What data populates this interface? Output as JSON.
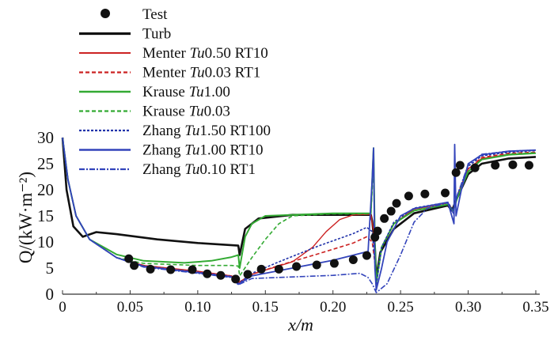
{
  "chart_data": {
    "type": "line",
    "xlabel": "x/m",
    "ylabel": "Q/(kW·m⁻²)",
    "xlim": [
      0,
      0.35
    ],
    "ylim": [
      0,
      30
    ],
    "xticks": [
      "0",
      "0.05",
      "0.10",
      "0.15",
      "0.20",
      "0.25",
      "0.30",
      "0.35"
    ],
    "xtick_values": [
      0,
      0.05,
      0.1,
      0.15,
      0.2,
      0.25,
      0.3,
      0.35
    ],
    "yticks": [
      "0",
      "5",
      "10",
      "15",
      "20",
      "25",
      "30"
    ],
    "ytick_values": [
      0,
      5,
      10,
      15,
      20,
      25,
      30
    ],
    "grid": false,
    "legend_placement": "top-center",
    "test": {
      "name": "Test",
      "x": [
        0.049,
        0.053,
        0.065,
        0.08,
        0.096,
        0.107,
        0.117,
        0.128,
        0.137,
        0.147,
        0.16,
        0.173,
        0.188,
        0.201,
        0.215,
        0.225,
        0.231,
        0.233,
        0.238,
        0.243,
        0.247,
        0.256,
        0.268,
        0.283,
        0.291,
        0.294,
        0.305,
        0.32,
        0.333,
        0.345
      ],
      "y": [
        6.8,
        5.5,
        4.8,
        4.7,
        4.7,
        3.9,
        3.6,
        2.9,
        3.8,
        4.8,
        4.8,
        5.3,
        5.6,
        5.9,
        6.6,
        7.4,
        10.9,
        12.1,
        14.5,
        15.9,
        17.4,
        18.8,
        19.2,
        19.4,
        23.3,
        24.7,
        24.2,
        24.7,
        24.8,
        24.7
      ]
    },
    "series": [
      {
        "name": "Turb",
        "prefix": "Turb",
        "tu": "",
        "suffix": "",
        "color": "#111111",
        "dash": "",
        "width": 2.6,
        "points": [
          [
            0,
            30
          ],
          [
            0.003,
            20
          ],
          [
            0.008,
            13
          ],
          [
            0.015,
            11
          ],
          [
            0.025,
            11.9
          ],
          [
            0.04,
            11.5
          ],
          [
            0.07,
            10.5
          ],
          [
            0.1,
            9.8
          ],
          [
            0.13,
            9.3
          ],
          [
            0.131,
            7.5
          ],
          [
            0.135,
            12.5
          ],
          [
            0.145,
            14.5
          ],
          [
            0.17,
            15.2
          ],
          [
            0.228,
            15.2
          ],
          [
            0.229,
            14
          ],
          [
            0.231,
            9
          ],
          [
            0.232,
            3
          ],
          [
            0.235,
            8
          ],
          [
            0.245,
            12.5
          ],
          [
            0.26,
            15.5
          ],
          [
            0.285,
            17
          ],
          [
            0.288,
            16
          ],
          [
            0.291,
            18
          ],
          [
            0.3,
            23
          ],
          [
            0.31,
            25
          ],
          [
            0.33,
            26
          ],
          [
            0.35,
            26.3
          ]
        ]
      },
      {
        "name": "Menter Tu0.50 RT10",
        "prefix": "Menter ",
        "tu": "Tu",
        "suffix": "0.50 RT10",
        "color": "#cc2222",
        "dash": "",
        "width": 1.4,
        "points": [
          [
            0,
            30
          ],
          [
            0.004,
            22
          ],
          [
            0.01,
            15
          ],
          [
            0.02,
            10.5
          ],
          [
            0.04,
            7
          ],
          [
            0.06,
            5.5
          ],
          [
            0.1,
            4.4
          ],
          [
            0.125,
            3.5
          ],
          [
            0.13,
            2.2
          ],
          [
            0.14,
            3.8
          ],
          [
            0.15,
            4.6
          ],
          [
            0.17,
            6.2
          ],
          [
            0.185,
            9
          ],
          [
            0.195,
            12
          ],
          [
            0.205,
            14.3
          ],
          [
            0.215,
            15.2
          ],
          [
            0.228,
            15.3
          ],
          [
            0.23,
            12
          ],
          [
            0.232,
            2
          ],
          [
            0.236,
            9
          ],
          [
            0.245,
            13.5
          ],
          [
            0.26,
            16.3
          ],
          [
            0.285,
            17.5
          ],
          [
            0.289,
            16
          ],
          [
            0.292,
            19
          ],
          [
            0.3,
            24
          ],
          [
            0.31,
            26
          ],
          [
            0.33,
            26.8
          ],
          [
            0.35,
            27
          ]
        ]
      },
      {
        "name": "Menter Tu0.03 RT1",
        "prefix": "Menter ",
        "tu": "Tu",
        "suffix": "0.03 RT1",
        "color": "#cc2222",
        "dash": "5,3",
        "width": 1.6,
        "points": [
          [
            0,
            30
          ],
          [
            0.004,
            22
          ],
          [
            0.01,
            15
          ],
          [
            0.02,
            10.5
          ],
          [
            0.04,
            7
          ],
          [
            0.06,
            5.5
          ],
          [
            0.1,
            4.3
          ],
          [
            0.125,
            3.5
          ],
          [
            0.13,
            2.2
          ],
          [
            0.14,
            3.8
          ],
          [
            0.16,
            5.5
          ],
          [
            0.19,
            7.8
          ],
          [
            0.215,
            9.8
          ],
          [
            0.225,
            11
          ],
          [
            0.229,
            10
          ],
          [
            0.231,
            6
          ],
          [
            0.232,
            2
          ],
          [
            0.236,
            9
          ],
          [
            0.245,
            13.5
          ],
          [
            0.26,
            16.3
          ],
          [
            0.285,
            17.5
          ],
          [
            0.289,
            16
          ],
          [
            0.292,
            19
          ],
          [
            0.3,
            24
          ],
          [
            0.31,
            26.2
          ],
          [
            0.33,
            27
          ],
          [
            0.35,
            27.2
          ]
        ]
      },
      {
        "name": "Krause Tu1.00",
        "prefix": "Krause ",
        "tu": "Tu",
        "suffix": "1.00",
        "color": "#33aa33",
        "dash": "",
        "width": 2,
        "points": [
          [
            0,
            30
          ],
          [
            0.004,
            22
          ],
          [
            0.01,
            15
          ],
          [
            0.02,
            10.5
          ],
          [
            0.04,
            7.6
          ],
          [
            0.06,
            6.4
          ],
          [
            0.09,
            6.0
          ],
          [
            0.11,
            6.4
          ],
          [
            0.125,
            7.1
          ],
          [
            0.13,
            7.5
          ],
          [
            0.131,
            5
          ],
          [
            0.135,
            11
          ],
          [
            0.14,
            13.5
          ],
          [
            0.15,
            15
          ],
          [
            0.2,
            15.5
          ],
          [
            0.228,
            15.5
          ],
          [
            0.229,
            22
          ],
          [
            0.23,
            28
          ],
          [
            0.231,
            10
          ],
          [
            0.232,
            2
          ],
          [
            0.236,
            9
          ],
          [
            0.245,
            13.5
          ],
          [
            0.26,
            16
          ],
          [
            0.285,
            17.2
          ],
          [
            0.289,
            16
          ],
          [
            0.292,
            18.5
          ],
          [
            0.3,
            23.5
          ],
          [
            0.31,
            25.8
          ],
          [
            0.33,
            26.7
          ],
          [
            0.35,
            27
          ]
        ]
      },
      {
        "name": "Krause Tu0.03",
        "prefix": "Krause ",
        "tu": "Tu",
        "suffix": "0.03",
        "color": "#33aa33",
        "dash": "5,3",
        "width": 1.6,
        "points": [
          [
            0,
            30
          ],
          [
            0.004,
            22
          ],
          [
            0.01,
            15
          ],
          [
            0.02,
            10.5
          ],
          [
            0.04,
            7
          ],
          [
            0.06,
            5.9
          ],
          [
            0.1,
            5.5
          ],
          [
            0.125,
            5.5
          ],
          [
            0.13,
            5.4
          ],
          [
            0.131,
            3.5
          ],
          [
            0.14,
            7
          ],
          [
            0.15,
            10.5
          ],
          [
            0.16,
            13.5
          ],
          [
            0.17,
            15
          ],
          [
            0.2,
            15.4
          ],
          [
            0.228,
            15.4
          ],
          [
            0.229,
            20
          ],
          [
            0.23,
            27
          ],
          [
            0.231,
            10
          ],
          [
            0.232,
            2
          ],
          [
            0.236,
            9
          ],
          [
            0.245,
            13.5
          ],
          [
            0.26,
            16
          ],
          [
            0.285,
            17.2
          ],
          [
            0.289,
            16
          ],
          [
            0.292,
            18.5
          ],
          [
            0.3,
            23.5
          ],
          [
            0.31,
            25.8
          ],
          [
            0.33,
            26.8
          ],
          [
            0.35,
            27.1
          ]
        ]
      },
      {
        "name": "Zhang Tu1.50 RT100",
        "prefix": "Zhang ",
        "tu": "Tu",
        "suffix": "1.50 RT100",
        "color": "#2233aa",
        "dash": "3,2",
        "width": 1.6,
        "points": [
          [
            0,
            30
          ],
          [
            0.004,
            22
          ],
          [
            0.01,
            15
          ],
          [
            0.02,
            10.5
          ],
          [
            0.04,
            7
          ],
          [
            0.06,
            5.4
          ],
          [
            0.1,
            4.2
          ],
          [
            0.125,
            3.4
          ],
          [
            0.13,
            2
          ],
          [
            0.14,
            4
          ],
          [
            0.16,
            6.2
          ],
          [
            0.19,
            9.3
          ],
          [
            0.215,
            11.6
          ],
          [
            0.225,
            12.8
          ],
          [
            0.229,
            12
          ],
          [
            0.231,
            6
          ],
          [
            0.232,
            1.5
          ],
          [
            0.236,
            9
          ],
          [
            0.245,
            13.8
          ],
          [
            0.26,
            16.5
          ],
          [
            0.285,
            17.6
          ],
          [
            0.289,
            16
          ],
          [
            0.292,
            19
          ],
          [
            0.3,
            24.5
          ],
          [
            0.31,
            26.5
          ],
          [
            0.33,
            27.2
          ],
          [
            0.35,
            27.5
          ]
        ]
      },
      {
        "name": "Zhang Tu1.00 RT10",
        "prefix": "Zhang ",
        "tu": "Tu",
        "suffix": "1.00 RT10",
        "color": "#3344bb",
        "dash": "",
        "width": 1.8,
        "points": [
          [
            0,
            30
          ],
          [
            0.004,
            22
          ],
          [
            0.01,
            15
          ],
          [
            0.02,
            10.5
          ],
          [
            0.04,
            7
          ],
          [
            0.06,
            5.3
          ],
          [
            0.1,
            4.1
          ],
          [
            0.125,
            3.3
          ],
          [
            0.13,
            1.9
          ],
          [
            0.14,
            3.5
          ],
          [
            0.17,
            5.0
          ],
          [
            0.2,
            6.5
          ],
          [
            0.22,
            7.8
          ],
          [
            0.226,
            8.2
          ],
          [
            0.229,
            22
          ],
          [
            0.23,
            28
          ],
          [
            0.231,
            5
          ],
          [
            0.232,
            0.8
          ],
          [
            0.236,
            5
          ],
          [
            0.24,
            10
          ],
          [
            0.25,
            15
          ],
          [
            0.26,
            16.4
          ],
          [
            0.285,
            17.6
          ],
          [
            0.2895,
            13.5
          ],
          [
            0.29,
            28.7
          ],
          [
            0.291,
            15
          ],
          [
            0.295,
            20
          ],
          [
            0.3,
            25
          ],
          [
            0.31,
            26.7
          ],
          [
            0.33,
            27.4
          ],
          [
            0.35,
            27.6
          ]
        ]
      },
      {
        "name": "Zhang Tu0.10 RT1",
        "prefix": "Zhang ",
        "tu": "Tu",
        "suffix": "0.10 RT1",
        "color": "#3344bb",
        "dash": "7,2,2,2",
        "width": 1.6,
        "points": [
          [
            0,
            30
          ],
          [
            0.004,
            22
          ],
          [
            0.01,
            15
          ],
          [
            0.02,
            10.5
          ],
          [
            0.04,
            7
          ],
          [
            0.06,
            5.2
          ],
          [
            0.1,
            4.0
          ],
          [
            0.125,
            3.2
          ],
          [
            0.13,
            1.8
          ],
          [
            0.14,
            3.0
          ],
          [
            0.17,
            3.3
          ],
          [
            0.2,
            3.6
          ],
          [
            0.22,
            4.0
          ],
          [
            0.226,
            3.2
          ],
          [
            0.229,
            2
          ],
          [
            0.232,
            0.3
          ],
          [
            0.24,
            2
          ],
          [
            0.25,
            7.5
          ],
          [
            0.26,
            13.8
          ],
          [
            0.27,
            16.5
          ],
          [
            0.285,
            17.5
          ],
          [
            0.289,
            15.5
          ],
          [
            0.292,
            19
          ],
          [
            0.3,
            24.8
          ],
          [
            0.31,
            26.8
          ],
          [
            0.33,
            27.4
          ],
          [
            0.35,
            27.6
          ]
        ]
      }
    ]
  }
}
